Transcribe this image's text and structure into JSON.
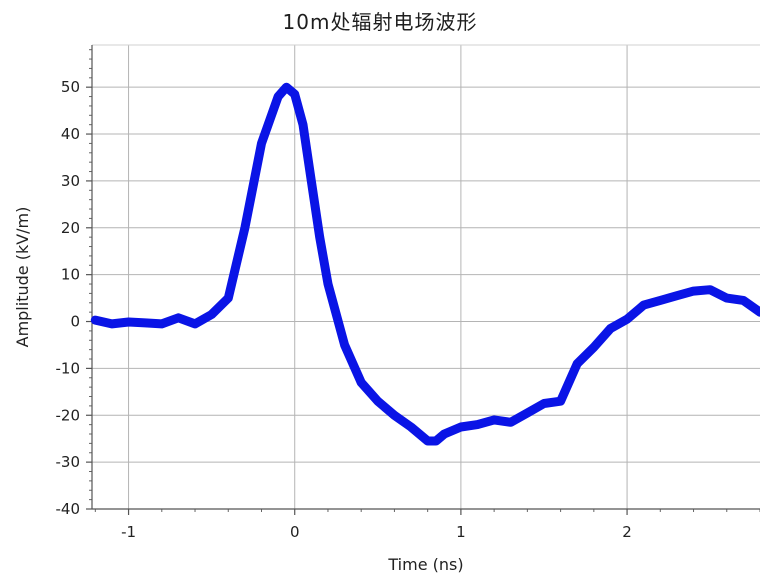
{
  "chart_data": {
    "type": "line",
    "title": "10m处辐射电场波形",
    "xlabel": "Time (ns)",
    "ylabel": "Amplitude (kV/m)",
    "xlim": [
      -1.22,
      2.8
    ],
    "ylim": [
      -40,
      59
    ],
    "grid": true,
    "x_ticks": [
      -1,
      0,
      1,
      2
    ],
    "x_tick_labels": [
      "-1",
      "0",
      "1",
      "2"
    ],
    "y_ticks": [
      -40,
      -30,
      -20,
      -10,
      0,
      10,
      20,
      30,
      40,
      50
    ],
    "y_tick_labels": [
      "-40",
      "-30",
      "-20",
      "-10",
      "0",
      "10",
      "20",
      "30",
      "40",
      "50"
    ],
    "line_color": "#0a14e6",
    "series": [
      {
        "x": [
          -1.2,
          -1.1,
          -1.0,
          -0.9,
          -0.8,
          -0.7,
          -0.6,
          -0.5,
          -0.4,
          -0.3,
          -0.2,
          -0.1,
          -0.05,
          0.0,
          0.05,
          0.1,
          0.15,
          0.2,
          0.3,
          0.4,
          0.5,
          0.6,
          0.7,
          0.8,
          0.85,
          0.9,
          1.0,
          1.1,
          1.2,
          1.3,
          1.4,
          1.5,
          1.6,
          1.7,
          1.8,
          1.9,
          2.0,
          2.1,
          2.2,
          2.3,
          2.4,
          2.5,
          2.6,
          2.7,
          2.8
        ],
        "y": [
          0.3,
          -0.5,
          -0.1,
          -0.3,
          -0.5,
          0.8,
          -0.5,
          1.5,
          5,
          20,
          38,
          48,
          50,
          48.5,
          42,
          30,
          18,
          8,
          -5,
          -13,
          -17,
          -20,
          -22.5,
          -25.5,
          -25.5,
          -24,
          -22.5,
          -22,
          -21,
          -21.5,
          -19.5,
          -17.5,
          -17,
          -9,
          -5.5,
          -1.5,
          0.5,
          3.5,
          4.5,
          5.5,
          6.5,
          6.8,
          5,
          4.5,
          2
        ]
      }
    ]
  }
}
